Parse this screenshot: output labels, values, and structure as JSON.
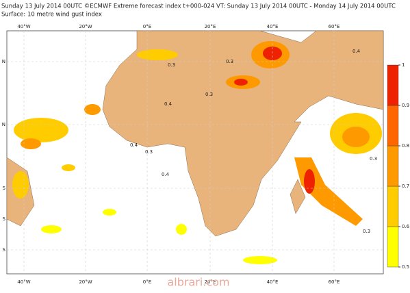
{
  "header": {
    "line1": "Sunday 13 July 2014 00UTC ©ECMWF Extreme forecast index t+000-024 VT: Sunday 13 July 2014 00UTC - Monday 14 July 2014 00UTC",
    "line2": "Surface: 10 metre wind gust index"
  },
  "map": {
    "lon_labels": [
      "40°W",
      "20°W",
      "0°E",
      "20°E",
      "40°E",
      "60°E"
    ],
    "lat_labels": [
      "N",
      "N",
      "S",
      "S",
      "S"
    ],
    "contour_labels": [
      "0.3",
      "0.4",
      "0.3",
      "0.4",
      "0.3",
      "0.4",
      "0.4",
      "0.3",
      "0.3",
      "0.3"
    ]
  },
  "colorbar": {
    "ticks": [
      0.5,
      0.6,
      0.7,
      0.8,
      0.9,
      1
    ],
    "colors": [
      "#ffff00",
      "#ffcc00",
      "#ff9900",
      "#ff6600",
      "#ee2200"
    ]
  },
  "watermark": "albrari.com"
}
